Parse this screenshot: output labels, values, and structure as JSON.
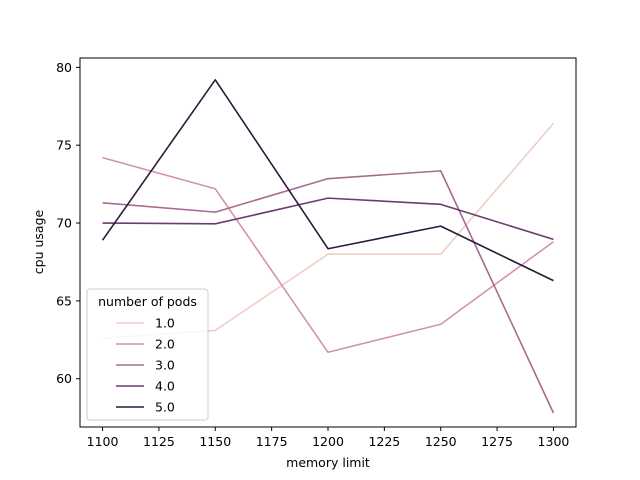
{
  "chart_data": {
    "type": "line",
    "xlabel": "memory limit",
    "ylabel": "cpu usage",
    "xlim": [
      1090,
      1310
    ],
    "ylim": [
      56.9,
      80.6
    ],
    "xticks": [
      1100,
      1125,
      1150,
      1175,
      1200,
      1225,
      1250,
      1275,
      1300
    ],
    "yticks": [
      60,
      65,
      70,
      75,
      80
    ],
    "grid": false,
    "legend": {
      "title": "number of pods",
      "placement": "lower-left"
    },
    "x": [
      1100,
      1150,
      1200,
      1250,
      1300
    ],
    "series": [
      {
        "name": "1.0",
        "color": "#f0cfc8",
        "values": [
          62.6,
          63.1,
          68.0,
          68.0,
          76.4
        ]
      },
      {
        "name": "2.0",
        "color": "#d094ac",
        "values": [
          74.2,
          72.2,
          61.7,
          63.5,
          68.8
        ]
      },
      {
        "name": "3.0",
        "color": "#aa6a90",
        "values": [
          71.3,
          70.7,
          72.85,
          73.35,
          57.8
        ]
      },
      {
        "name": "4.0",
        "color": "#6e3b6e",
        "values": [
          70.0,
          69.95,
          71.6,
          71.2,
          68.95
        ]
      },
      {
        "name": "5.0",
        "color": "#2b1a3c",
        "values": [
          68.9,
          79.2,
          68.35,
          69.8,
          66.3
        ]
      }
    ]
  }
}
